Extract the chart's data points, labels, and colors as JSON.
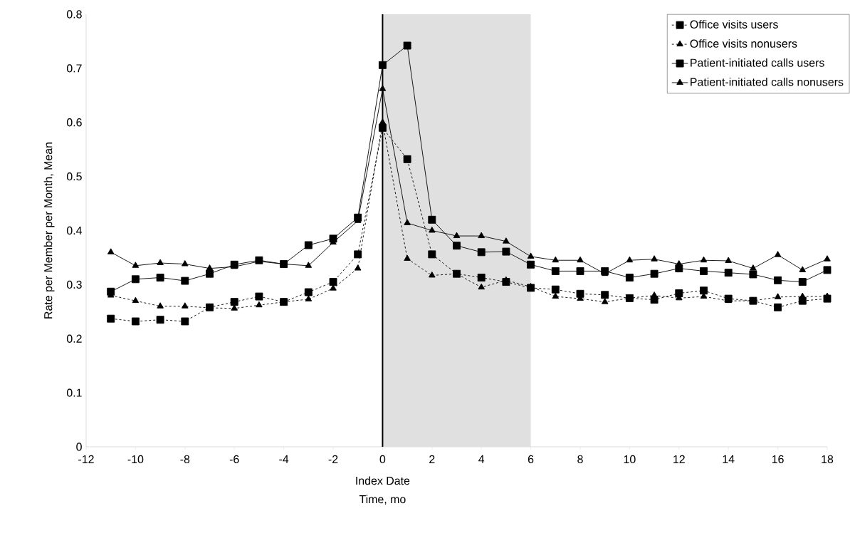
{
  "chart_data": {
    "type": "line",
    "ylabel": "Rate per Member per Month, Mean",
    "xlabel": "Time, mo",
    "x": [
      -11,
      -10,
      -9,
      -8,
      -7,
      -6,
      -5,
      -4,
      -3,
      -2,
      -1,
      0,
      1,
      2,
      3,
      4,
      5,
      6,
      7,
      8,
      9,
      10,
      11,
      12,
      13,
      14,
      15,
      16,
      17,
      18
    ],
    "series": [
      {
        "name": "Office visits users",
        "color": "#000000",
        "marker": "square",
        "line_style": "dashed",
        "values": [
          0.237,
          0.232,
          0.235,
          0.232,
          0.258,
          0.268,
          0.278,
          0.268,
          0.286,
          0.305,
          0.356,
          0.59,
          0.532,
          0.356,
          0.32,
          0.313,
          0.305,
          0.294,
          0.291,
          0.283,
          0.281,
          0.275,
          0.272,
          0.284,
          0.289,
          0.274,
          0.27,
          0.258,
          0.27,
          0.274
        ]
      },
      {
        "name": "Office visits nonusers",
        "color": "#000000",
        "marker": "triangle",
        "line_style": "dashed",
        "values": [
          0.28,
          0.27,
          0.26,
          0.26,
          0.257,
          0.256,
          0.262,
          0.268,
          0.273,
          0.293,
          0.33,
          0.6,
          0.348,
          0.317,
          0.32,
          0.295,
          0.308,
          0.296,
          0.278,
          0.274,
          0.268,
          0.275,
          0.28,
          0.275,
          0.278,
          0.27,
          0.27,
          0.277,
          0.278,
          0.278
        ]
      },
      {
        "name": "Patient-initiated calls users",
        "color": "#000000",
        "marker": "square",
        "line_style": "solid",
        "values": [
          0.287,
          0.31,
          0.313,
          0.307,
          0.32,
          0.337,
          0.345,
          0.338,
          0.373,
          0.385,
          0.424,
          0.706,
          0.742,
          0.42,
          0.372,
          0.36,
          0.361,
          0.337,
          0.325,
          0.325,
          0.325,
          0.313,
          0.32,
          0.33,
          0.325,
          0.322,
          0.319,
          0.308,
          0.305,
          0.327
        ]
      },
      {
        "name": "Patient-initiated calls nonusers",
        "color": "#000000",
        "marker": "triangle",
        "line_style": "solid",
        "values": [
          0.36,
          0.335,
          0.34,
          0.338,
          0.33,
          0.333,
          0.343,
          0.338,
          0.335,
          0.378,
          0.418,
          0.662,
          0.414,
          0.4,
          0.39,
          0.39,
          0.38,
          0.352,
          0.345,
          0.345,
          0.32,
          0.345,
          0.347,
          0.338,
          0.345,
          0.344,
          0.33,
          0.355,
          0.327,
          0.347
        ]
      }
    ],
    "xlim": [
      -12,
      18
    ],
    "xticks": [
      -12,
      -10,
      -8,
      -6,
      -4,
      -2,
      0,
      2,
      4,
      6,
      8,
      10,
      12,
      14,
      16,
      18
    ],
    "ylim": [
      0,
      0.8
    ],
    "yticks": [
      0,
      0.1,
      0.2,
      0.3,
      0.4,
      0.5,
      0.6,
      0.7,
      0.8
    ],
    "ref_lines": [
      {
        "axis": "x",
        "value": 0,
        "color": "#000000"
      }
    ],
    "annotations": [
      "Index Date"
    ],
    "bands": [
      {
        "axis": "x",
        "from": 0,
        "to": 6,
        "color": "#e0e0e0"
      }
    ],
    "legend": "top right",
    "grid": false
  }
}
